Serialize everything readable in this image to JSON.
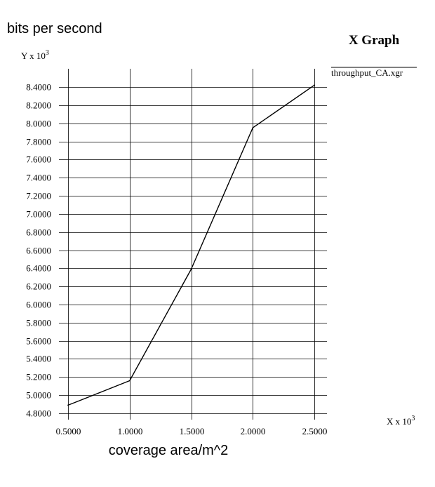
{
  "chart_data": {
    "type": "line",
    "title": "X Graph",
    "ylabel": "bits per second",
    "xlabel": "coverage area/m^2",
    "y_unit_label": "Y x 10",
    "y_unit_exponent": "3",
    "x_unit_label": "X x 10",
    "x_unit_exponent": "3",
    "x_ticks": [
      "0.5000",
      "1.0000",
      "1.5000",
      "2.0000",
      "2.5000"
    ],
    "x_tick_values": [
      0.5,
      1.0,
      1.5,
      2.0,
      2.5
    ],
    "y_ticks": [
      "4.8000",
      "5.0000",
      "5.2000",
      "5.4000",
      "5.6000",
      "5.8000",
      "6.0000",
      "6.2000",
      "6.4000",
      "6.6000",
      "6.8000",
      "7.0000",
      "7.2000",
      "7.4000",
      "7.6000",
      "7.8000",
      "8.0000",
      "8.2000",
      "8.4000"
    ],
    "y_tick_values": [
      4.8,
      5.0,
      5.2,
      5.4,
      5.6,
      5.8,
      6.0,
      6.2,
      6.4,
      6.6,
      6.8,
      7.0,
      7.2,
      7.4,
      7.6,
      7.8,
      8.0,
      8.2,
      8.4
    ],
    "xlim": [
      0.5,
      2.5
    ],
    "ylim": [
      4.8,
      8.4
    ],
    "grid": true,
    "legend_position": "top-right",
    "series": [
      {
        "name": "throughput_CA.xgr",
        "x": [
          0.5,
          1.0,
          1.5,
          2.0,
          2.5
        ],
        "y": [
          4.89,
          5.16,
          6.39,
          7.95,
          8.42
        ]
      }
    ],
    "colors": {
      "line": "#000000",
      "grid": "#000000",
      "background": "#ffffff"
    }
  }
}
